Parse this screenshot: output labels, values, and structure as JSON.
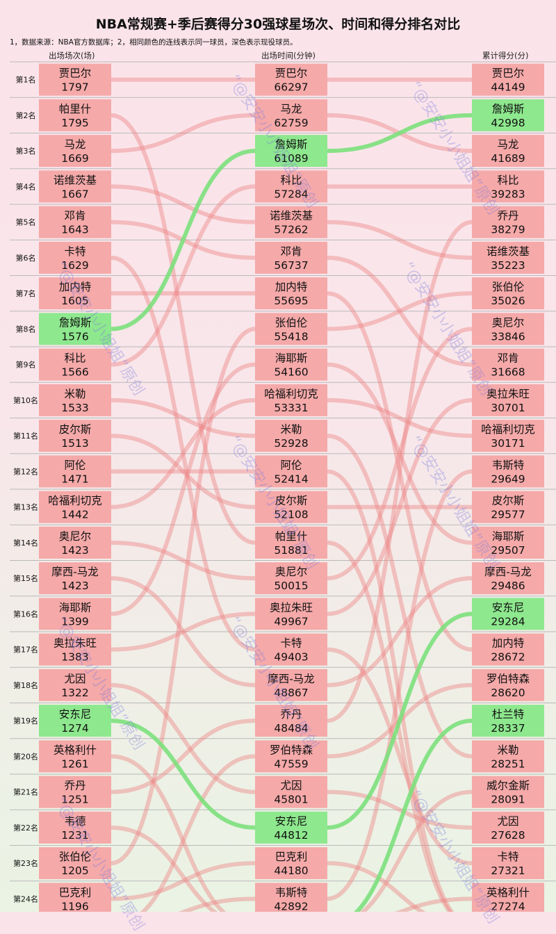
{
  "title": "NBA常规赛+季后赛得分30强球星场次、时间和得分排名对比",
  "note": "1，数据来源：NBA官方数据库；2，相同颜色的连线表示同一球员，深色表示现役球员。",
  "watermark": "“@安安小小姐姐”原创",
  "chart_data": {
    "type": "table",
    "columns": [
      {
        "key": "games",
        "header": "出场场次(场)"
      },
      {
        "key": "minutes",
        "header": "出场时间(分钟)"
      },
      {
        "key": "points",
        "header": "累计得分(分)"
      }
    ],
    "rank_labels": [
      "第1名",
      "第2名",
      "第3名",
      "第4名",
      "第5名",
      "第6名",
      "第7名",
      "第8名",
      "第9名",
      "第10名",
      "第11名",
      "第12名",
      "第13名",
      "第14名",
      "第15名",
      "第16名",
      "第17名",
      "第18名",
      "第19名",
      "第20名",
      "第21名",
      "第22名",
      "第23名",
      "第24名"
    ],
    "games": [
      {
        "name": "贾巴尔",
        "value": 1797
      },
      {
        "name": "帕里什",
        "value": 1795
      },
      {
        "name": "马龙",
        "value": 1669
      },
      {
        "name": "诺维茨基",
        "value": 1667
      },
      {
        "name": "邓肯",
        "value": 1643
      },
      {
        "name": "卡特",
        "value": 1629
      },
      {
        "name": "加内特",
        "value": 1605
      },
      {
        "name": "詹姆斯",
        "value": 1576,
        "active": true
      },
      {
        "name": "科比",
        "value": 1566
      },
      {
        "name": "米勒",
        "value": 1533
      },
      {
        "name": "皮尔斯",
        "value": 1513
      },
      {
        "name": "阿伦",
        "value": 1471
      },
      {
        "name": "哈福利切克",
        "value": 1442
      },
      {
        "name": "奥尼尔",
        "value": 1423
      },
      {
        "name": "摩西-马龙",
        "value": 1423
      },
      {
        "name": "海耶斯",
        "value": 1399
      },
      {
        "name": "奥拉朱旺",
        "value": 1383
      },
      {
        "name": "尤因",
        "value": 1322
      },
      {
        "name": "安东尼",
        "value": 1274,
        "active": true
      },
      {
        "name": "英格利什",
        "value": 1261
      },
      {
        "name": "乔丹",
        "value": 1251
      },
      {
        "name": "韦德",
        "value": 1231
      },
      {
        "name": "张伯伦",
        "value": 1205
      },
      {
        "name": "巴克利",
        "value": 1196
      }
    ],
    "minutes": [
      {
        "name": "贾巴尔",
        "value": 66297
      },
      {
        "name": "马龙",
        "value": 62759
      },
      {
        "name": "詹姆斯",
        "value": 61089,
        "active": true
      },
      {
        "name": "科比",
        "value": 57284
      },
      {
        "name": "诺维茨基",
        "value": 57262
      },
      {
        "name": "邓肯",
        "value": 56737
      },
      {
        "name": "加内特",
        "value": 55695
      },
      {
        "name": "张伯伦",
        "value": 55418
      },
      {
        "name": "海耶斯",
        "value": 54160
      },
      {
        "name": "哈福利切克",
        "value": 53331
      },
      {
        "name": "米勒",
        "value": 52928
      },
      {
        "name": "阿伦",
        "value": 52414
      },
      {
        "name": "皮尔斯",
        "value": 52108
      },
      {
        "name": "帕里什",
        "value": 51881
      },
      {
        "name": "奥尼尔",
        "value": 50015
      },
      {
        "name": "奥拉朱旺",
        "value": 49967
      },
      {
        "name": "卡特",
        "value": 49403
      },
      {
        "name": "摩西-马龙",
        "value": 48867
      },
      {
        "name": "乔丹",
        "value": 48484
      },
      {
        "name": "罗伯特森",
        "value": 47559
      },
      {
        "name": "尤因",
        "value": 45801
      },
      {
        "name": "安东尼",
        "value": 44812,
        "active": true
      },
      {
        "name": "巴克利",
        "value": 44180
      },
      {
        "name": "韦斯特",
        "value": 42892
      }
    ],
    "points": [
      {
        "name": "贾巴尔",
        "value": 44149
      },
      {
        "name": "詹姆斯",
        "value": 42998,
        "active": true
      },
      {
        "name": "马龙",
        "value": 41689
      },
      {
        "name": "科比",
        "value": 39283
      },
      {
        "name": "乔丹",
        "value": 38279
      },
      {
        "name": "诺维茨基",
        "value": 35223
      },
      {
        "name": "张伯伦",
        "value": 35026
      },
      {
        "name": "奥尼尔",
        "value": 33846
      },
      {
        "name": "邓肯",
        "value": 31668
      },
      {
        "name": "奥拉朱旺",
        "value": 30701
      },
      {
        "name": "哈福利切克",
        "value": 30171
      },
      {
        "name": "韦斯特",
        "value": 29649
      },
      {
        "name": "皮尔斯",
        "value": 29577
      },
      {
        "name": "海耶斯",
        "value": 29507
      },
      {
        "name": "摩西-马龙",
        "value": 29486
      },
      {
        "name": "安东尼",
        "value": 29284,
        "active": true
      },
      {
        "name": "加内特",
        "value": 28672
      },
      {
        "name": "罗伯特森",
        "value": 28620
      },
      {
        "name": "杜兰特",
        "value": 28337,
        "active": true
      },
      {
        "name": "米勒",
        "value": 28251
      },
      {
        "name": "威尔金斯",
        "value": 28091
      },
      {
        "name": "尤因",
        "value": 27628
      },
      {
        "name": "卡特",
        "value": 27321
      },
      {
        "name": "英格利什",
        "value": 27274
      }
    ],
    "colors": {
      "retired_box": "#f5a9a9",
      "active_box": "#8ee88e",
      "retired_line": "#ee8888",
      "active_line": "#7ce07c",
      "separator": "#b9b9b9"
    }
  }
}
